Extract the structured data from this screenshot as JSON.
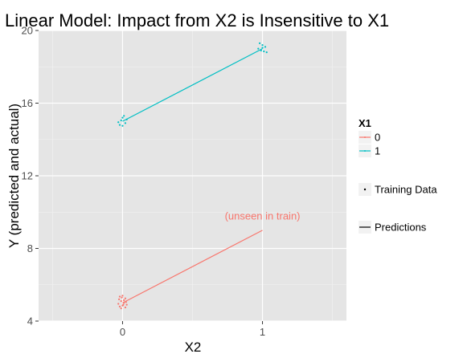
{
  "chart_data": {
    "type": "scatter",
    "title": "Linear Model: Impact from X2 is Insensitive to X1",
    "xlabel": "X2",
    "ylabel": "Y (predicted and actual)",
    "x_ticks": [
      "0",
      "1"
    ],
    "x_tick_values": [
      0,
      1
    ],
    "xlim": [
      -0.6,
      1.6
    ],
    "y_ticks": [
      "4",
      "8",
      "12",
      "16",
      "20"
    ],
    "y_tick_values": [
      4,
      8,
      12,
      16,
      20
    ],
    "ylim": [
      4,
      20
    ],
    "grid": true,
    "legend_placement": "right",
    "legend": {
      "title": "X1",
      "entries": [
        {
          "label": "0",
          "color": "#F8766D"
        },
        {
          "label": "1",
          "color": "#00BFC4"
        }
      ],
      "shape_entries": [
        {
          "label": "Training Data",
          "kind": "point"
        },
        {
          "label": "Predictions",
          "kind": "line"
        }
      ]
    },
    "series": [
      {
        "name": "0",
        "color": "#F8766D",
        "training_data": [
          {
            "x": -0.02,
            "y": 5.35
          },
          {
            "x": 0.02,
            "y": 5.25
          },
          {
            "x": 0.0,
            "y": 5.4
          },
          {
            "x": -0.01,
            "y": 5.1
          },
          {
            "x": 0.01,
            "y": 5.0
          },
          {
            "x": -0.03,
            "y": 4.95
          },
          {
            "x": 0.03,
            "y": 4.9
          },
          {
            "x": 0.0,
            "y": 4.85
          },
          {
            "x": -0.02,
            "y": 4.8
          },
          {
            "x": 0.02,
            "y": 4.75
          },
          {
            "x": 0.01,
            "y": 5.15
          },
          {
            "x": -0.01,
            "y": 4.7
          },
          {
            "x": 0.025,
            "y": 5.05
          },
          {
            "x": -0.025,
            "y": 5.2
          },
          {
            "x": 0.005,
            "y": 4.9
          },
          {
            "x": -0.005,
            "y": 5.3
          }
        ],
        "predictions": [
          {
            "x": 0,
            "y": 5.0
          },
          {
            "x": 1,
            "y": 9.0
          }
        ]
      },
      {
        "name": "1",
        "color": "#00BFC4",
        "training_data": [
          {
            "x": -0.02,
            "y": 14.8
          },
          {
            "x": 0.02,
            "y": 14.9
          },
          {
            "x": 0.0,
            "y": 15.2
          },
          {
            "x": -0.01,
            "y": 15.05
          },
          {
            "x": 0.01,
            "y": 15.3
          },
          {
            "x": -0.03,
            "y": 14.95
          },
          {
            "x": 0.03,
            "y": 15.1
          },
          {
            "x": 0.0,
            "y": 14.75
          },
          {
            "x": 0.98,
            "y": 19.3
          },
          {
            "x": 1.02,
            "y": 19.1
          },
          {
            "x": 1.0,
            "y": 19.2
          },
          {
            "x": 0.99,
            "y": 18.9
          },
          {
            "x": 1.01,
            "y": 18.85
          },
          {
            "x": 0.97,
            "y": 19.0
          },
          {
            "x": 1.03,
            "y": 18.8
          },
          {
            "x": 1.0,
            "y": 19.05
          }
        ],
        "predictions": [
          {
            "x": 0,
            "y": 15.0
          },
          {
            "x": 1,
            "y": 19.0
          }
        ]
      }
    ],
    "annotations": [
      {
        "text": "(unseen in train)",
        "x": 1.0,
        "y": 9.6,
        "color": "#F8766D"
      }
    ]
  }
}
